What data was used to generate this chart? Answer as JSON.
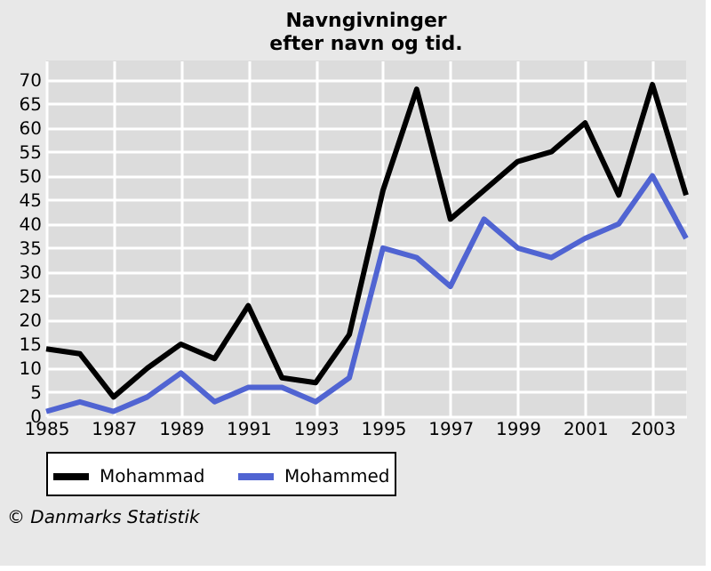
{
  "chart_data": {
    "type": "line",
    "title": "Navngivninger\nefter navn og tid.",
    "x": [
      1985,
      1986,
      1987,
      1988,
      1989,
      1990,
      1991,
      1992,
      1993,
      1994,
      1995,
      1996,
      1997,
      1998,
      1999,
      2000,
      2001,
      2002,
      2003,
      2004
    ],
    "series": [
      {
        "name": "Mohammad",
        "color": "#000000",
        "values": [
          14,
          13,
          4,
          10,
          15,
          12,
          23,
          8,
          7,
          17,
          47,
          68,
          41,
          47,
          53,
          55,
          61,
          46,
          69,
          46
        ]
      },
      {
        "name": "Mohammed",
        "color": "#5064d2",
        "values": [
          1,
          3,
          1,
          4,
          9,
          3,
          6,
          6,
          3,
          8,
          35,
          33,
          27,
          41,
          35,
          33,
          37,
          40,
          50,
          37
        ]
      }
    ],
    "xlim": [
      1985,
      2004
    ],
    "xticks": [
      1985,
      1987,
      1989,
      1991,
      1993,
      1995,
      1997,
      1999,
      2001,
      2003
    ],
    "ylim": [
      0,
      74
    ],
    "yticks": [
      0,
      5,
      10,
      15,
      20,
      25,
      30,
      35,
      40,
      45,
      50,
      55,
      60,
      65,
      70
    ],
    "grid": true,
    "legend": "bottom",
    "marker": "none",
    "line_style": "solid",
    "annotations": [
      "© Danmarks Statistik"
    ]
  }
}
